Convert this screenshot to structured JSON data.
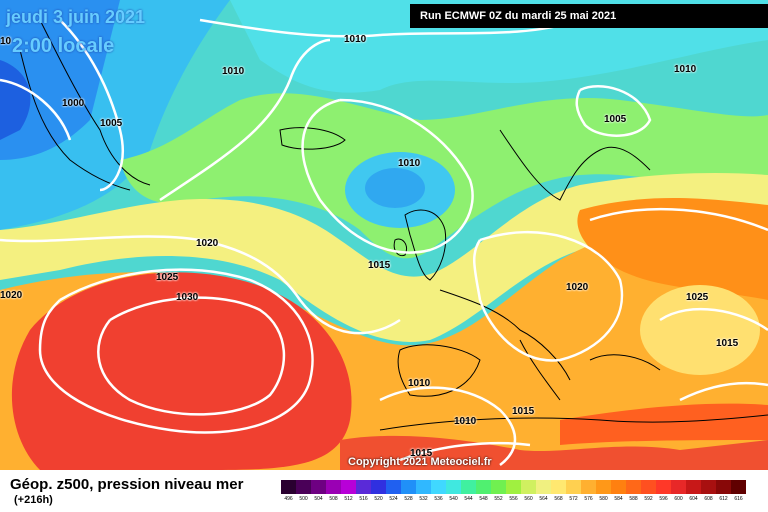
{
  "header": {
    "valid_date": "jeudi 3 juin 2021",
    "valid_time": "2:00 locale",
    "run_label": "Run ECMWF 0Z du mardi 25 mai 2021"
  },
  "copyright": "Copyright 2021 Meteociel.fr",
  "footer": {
    "title": "Géop. z500, pression niveau mer",
    "subtitle": "(+216h)"
  },
  "isobar_labels": [
    "1010",
    "1010",
    "1010",
    "1005",
    "1000",
    "1005",
    "1010",
    "1015",
    "1020",
    "1025",
    "1030",
    "1020",
    "1020",
    "1025",
    "1015",
    "1010",
    "1015",
    "1010",
    "1015",
    "10"
  ],
  "scale": {
    "values": [
      "496",
      "500",
      "504",
      "508",
      "512",
      "516",
      "520",
      "524",
      "528",
      "532",
      "536",
      "540",
      "544",
      "548",
      "552",
      "556",
      "560",
      "564",
      "568",
      "572",
      "576",
      "580",
      "584",
      "588",
      "592",
      "596",
      "600",
      "604",
      "608",
      "612",
      "616"
    ],
    "colors": [
      "#2a0030",
      "#4a0058",
      "#6e0082",
      "#9a00b4",
      "#b800d8",
      "#5a2ad8",
      "#3030e0",
      "#2060f0",
      "#2090f8",
      "#30b8ff",
      "#40d8ff",
      "#40e8e0",
      "#40f0a0",
      "#50f070",
      "#70f050",
      "#a0f040",
      "#d0f060",
      "#f0f080",
      "#ffe870",
      "#ffd050",
      "#ffb030",
      "#ff9818",
      "#ff8010",
      "#ff6818",
      "#ff5020",
      "#ff3828",
      "#e82828",
      "#c81818",
      "#a81010",
      "#880808",
      "#600000"
    ]
  },
  "colors": {
    "high_core": "#f04030",
    "warm": "#ff9a20",
    "mid": "#8ef070",
    "cool": "#50d8d8",
    "cold": "#2080f0",
    "isobar": "#ffffff"
  }
}
